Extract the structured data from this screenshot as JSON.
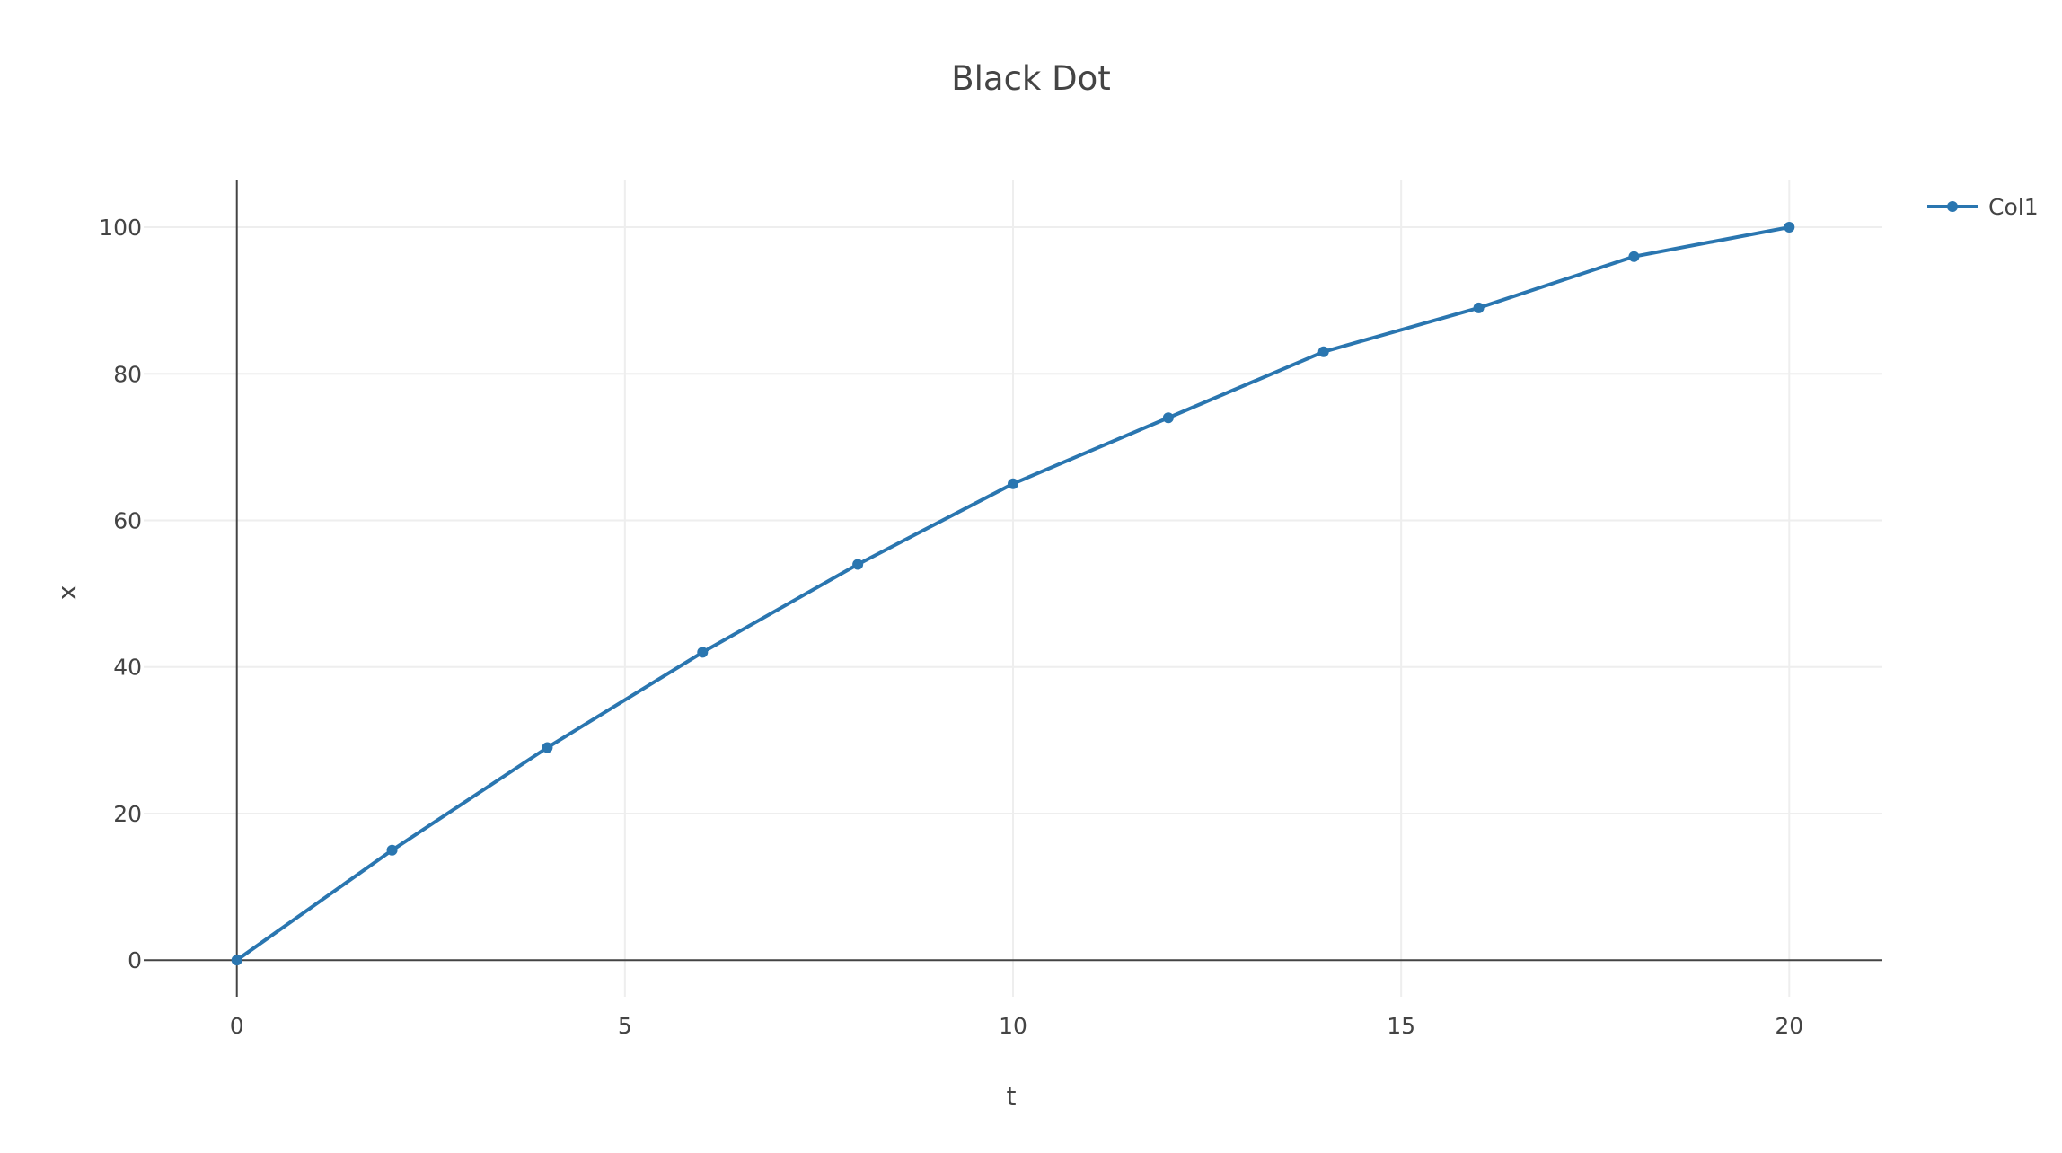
{
  "chart_data": {
    "type": "line",
    "title": "Black Dot",
    "xlabel": "t",
    "ylabel": "x",
    "xlim": [
      -1.2,
      21.2
    ],
    "ylim": [
      -5,
      106.5
    ],
    "x_ticks": [
      0,
      5,
      10,
      15,
      20
    ],
    "y_ticks": [
      0,
      20,
      40,
      60,
      80,
      100
    ],
    "x_tick_labels": [
      "0",
      "5",
      "10",
      "15",
      "20"
    ],
    "y_tick_labels": [
      "0",
      "20",
      "40",
      "60",
      "80",
      "100"
    ],
    "grid": true,
    "legend_position": "top-right",
    "x": [
      0,
      2,
      4,
      6,
      8,
      10,
      12,
      14,
      16,
      18,
      20
    ],
    "series": [
      {
        "name": "Col1",
        "color": "#2a76b0",
        "mode": "lines+markers",
        "values": [
          0,
          15,
          29,
          42,
          54,
          65,
          74,
          83,
          89,
          96,
          100
        ]
      }
    ]
  }
}
